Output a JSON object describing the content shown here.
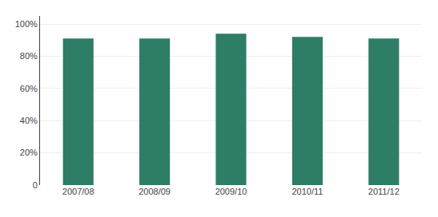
{
  "chart_data": {
    "type": "bar",
    "categories": [
      "2007/08",
      "2008/09",
      "2009/10",
      "2010/11",
      "2011/12"
    ],
    "values": [
      0.91,
      0.91,
      0.94,
      0.92,
      0.91
    ],
    "color": "#2e7d66",
    "ylim": [
      0,
      1.05
    ],
    "yticks": [
      0,
      {
        "value": 0.2,
        "label": "20%"
      },
      {
        "value": 0.4,
        "label": "40%"
      },
      {
        "value": 0.6,
        "label": "60%"
      },
      {
        "value": 0.8,
        "label": "80%"
      },
      {
        "value": 1.0,
        "label": "100%"
      }
    ],
    "grid": true
  }
}
